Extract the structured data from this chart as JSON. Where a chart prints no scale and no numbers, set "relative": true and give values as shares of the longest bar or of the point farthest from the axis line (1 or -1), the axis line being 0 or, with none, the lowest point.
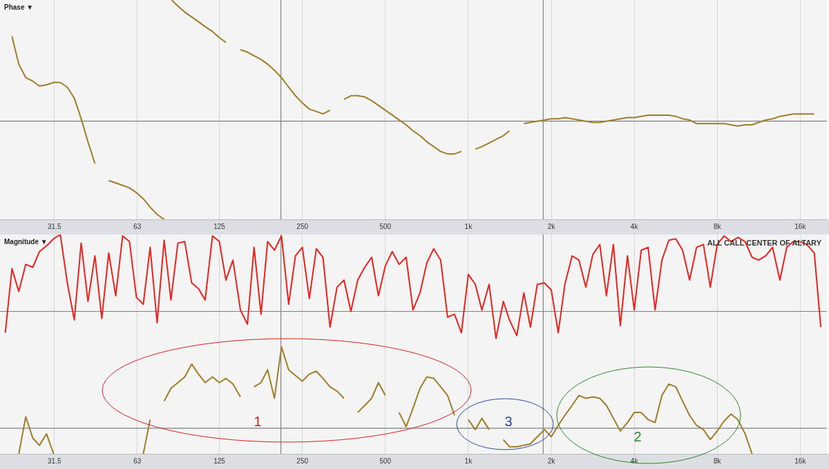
{
  "chart_data": [
    {
      "type": "line",
      "title": "Phase ▼",
      "relative": true,
      "log": "x",
      "xlim": [
        20,
        20000
      ],
      "xticks": [
        31.5,
        63,
        125,
        250,
        500,
        {
          "value": 1000,
          "label": "1k"
        },
        {
          "value": 2000,
          "label": "2k"
        },
        {
          "value": 4000,
          "label": "4k"
        },
        {
          "value": 8000,
          "label": "8k"
        },
        {
          "value": 16000,
          "label": "16k"
        }
      ],
      "grid": "x",
      "tick_labels": "x",
      "ref_lines": [
        {
          "axis": "y",
          "value": 0,
          "color": "#808080"
        },
        {
          "axis": "x",
          "value": 209,
          "color": "#808080"
        },
        {
          "axis": "x",
          "value": 1870,
          "color": "#808080"
        }
      ],
      "series": [
        {
          "color": "#a07c28",
          "x": [
            22.1,
            23.4,
            24.8,
            26.3,
            27.8,
            29.5,
            31.3,
            33.1,
            35.1,
            37.2,
            39.4,
            41.7,
            44.2,
            46.8,
            49.6,
            52.6,
            55.7,
            59,
            62.5,
            66.2,
            70.1,
            74.3,
            78.8,
            81,
            83.9,
            88.4,
            93.6,
            99.2,
            105,
            111,
            118,
            125,
            132,
            140,
            149,
            158,
            167,
            177,
            187,
            198,
            210,
            223,
            236,
            250,
            265,
            281,
            297,
            315,
            334,
            354,
            375,
            397,
            421,
            446,
            472,
            500,
            530,
            561,
            595,
            630,
            668,
            707,
            749,
            794,
            841,
            891,
            944,
            1000,
            1060,
            1120,
            1190,
            1260,
            1340,
            1410,
            1500,
            1590,
            1680,
            1780,
            1890,
            2000,
            2120,
            2240,
            2380,
            2520,
            2670,
            2830,
            3000,
            3170,
            3360,
            3560,
            3780,
            4000,
            4240,
            4490,
            4760,
            5040,
            5340,
            5660,
            5990,
            6350,
            6730,
            7130,
            7550,
            8000,
            8470,
            8980,
            9510,
            10100,
            10700,
            11300,
            12000,
            12700,
            13500,
            14300,
            15100,
            16000,
            16900,
            18000
          ],
          "values": [
            0.7,
            0.47,
            0.36,
            0.33,
            0.29,
            0.3,
            0.32,
            0.32,
            0.28,
            0.19,
            0.02,
            -0.17,
            -0.35,
            null,
            -0.49,
            -0.51,
            -0.53,
            -0.55,
            -0.59,
            -0.64,
            -0.71,
            -0.77,
            -0.81,
            null,
            1.0,
            0.95,
            0.9,
            0.86,
            0.82,
            0.78,
            0.74,
            0.69,
            0.65,
            null,
            0.59,
            0.57,
            0.54,
            0.51,
            0.47,
            0.42,
            0.36,
            0.28,
            0.21,
            0.15,
            0.1,
            0.08,
            0.06,
            0.09,
            null,
            0.18,
            0.21,
            0.21,
            0.2,
            0.17,
            0.13,
            0.09,
            0.05,
            0.01,
            -0.03,
            -0.08,
            -0.12,
            -0.17,
            -0.21,
            -0.25,
            -0.27,
            -0.27,
            -0.25,
            null,
            -0.23,
            -0.21,
            -0.18,
            -0.15,
            -0.12,
            -0.08,
            null,
            -0.02,
            -0.01,
            0,
            0.01,
            0.02,
            0.02,
            0.03,
            0.02,
            0.01,
            0,
            -0.01,
            -0.01,
            0,
            0.01,
            0.02,
            0.03,
            0.03,
            0.04,
            0.05,
            0.05,
            0.05,
            0.05,
            0.04,
            0.02,
            0.01,
            -0.02,
            -0.02,
            -0.02,
            -0.02,
            -0.02,
            -0.03,
            -0.04,
            -0.03,
            -0.03,
            -0.01,
            0.01,
            0.02,
            0.04,
            0.05,
            0.06,
            0.06,
            0.06,
            0.06
          ]
        }
      ]
    },
    {
      "type": "line",
      "title": "Magnitude ▼",
      "relative": true,
      "log": "x",
      "xlim": [
        20,
        20000
      ],
      "xticks": [
        31.5,
        63,
        125,
        250,
        500,
        {
          "value": 1000,
          "label": "1k"
        },
        {
          "value": 2000,
          "label": "2k"
        },
        {
          "value": 4000,
          "label": "4k"
        },
        {
          "value": 8000,
          "label": "8k"
        },
        {
          "value": 16000,
          "label": "16k"
        }
      ],
      "grid": "x",
      "tick_labels": "x",
      "ref_lines": [
        {
          "axis": "y",
          "value": 0,
          "color": "#808080"
        },
        {
          "axis": "y",
          "value": -0.82,
          "color": "#808080"
        },
        {
          "axis": "x",
          "value": 209,
          "color": "#808080"
        },
        {
          "axis": "x",
          "value": 1870,
          "color": "#808080"
        }
      ],
      "annotations": [
        "ALL CALL CENTER OF ALTARY",
        "1",
        "2",
        "3"
      ],
      "x": [
        20.9,
        22.1,
        23.4,
        24.8,
        26.3,
        27.8,
        29.5,
        31.3,
        33.1,
        35.1,
        37.2,
        39.4,
        41.7,
        44.2,
        46.8,
        49.6,
        52.6,
        55.7,
        59,
        62.5,
        66.2,
        70.1,
        74.3,
        78.8,
        83.4,
        88.4,
        93.6,
        99.2,
        105,
        111,
        118,
        125,
        132,
        140,
        149,
        158,
        167,
        177,
        187,
        198,
        210,
        223,
        236,
        250,
        265,
        281,
        297,
        315,
        334,
        354,
        375,
        397,
        421,
        446,
        472,
        500,
        530,
        561,
        595,
        630,
        668,
        707,
        749,
        794,
        841,
        891,
        944,
        1000,
        1060,
        1120,
        1190,
        1260,
        1340,
        1410,
        1500,
        1590,
        1680,
        1780,
        1890,
        2000,
        2120,
        2240,
        2380,
        2520,
        2670,
        2830,
        3000,
        3170,
        3360,
        3560,
        3780,
        4000,
        4240,
        4490,
        4760,
        5040,
        5340,
        5660,
        5990,
        6350,
        6730,
        7130,
        7550,
        8000,
        8470,
        8980,
        9510,
        10100,
        10700,
        11300,
        12000,
        12700,
        13500,
        14300,
        15100,
        16000,
        16900,
        18000,
        19000
      ],
      "series": [
        {
          "color": "#e8221c",
          "values": [
            -0.15,
            0.3,
            0.14,
            0.33,
            0.31,
            0.42,
            0.46,
            0.51,
            0.54,
            0.2,
            -0.06,
            0.48,
            0.07,
            0.39,
            -0.05,
            0.41,
            0.11,
            0.53,
            0.49,
            0.1,
            0.05,
            0.45,
            -0.08,
            0.5,
            0.08,
            0.48,
            0.49,
            0.2,
            0.16,
            0.08,
            0.53,
            0.49,
            0.22,
            0.36,
            0.01,
            -0.09,
            0.45,
            -0.02,
            0.49,
            0.43,
            0.53,
            0.05,
            0.39,
            0.45,
            0.09,
            0.44,
            0.38,
            -0.11,
            0.17,
            0.22,
            0,
            0.22,
            0.31,
            0.38,
            0.11,
            0.32,
            0.42,
            0.33,
            0.38,
            0.01,
            0.13,
            0.34,
            0.44,
            0.36,
            -0.04,
            -0.02,
            -0.15,
            0.26,
            0.19,
            0.01,
            0.19,
            -0.19,
            0.07,
            -0.06,
            -0.17,
            0.13,
            -0.11,
            0.19,
            0.2,
            0.15,
            -0.15,
            0.19,
            0.39,
            0.36,
            0.17,
            0.4,
            0.47,
            0.11,
            0.47,
            -0.1,
            0.39,
            0.01,
            0.43,
            0.45,
            0.01,
            0.36,
            0.5,
            0.51,
            0.43,
            0.22,
            0.45,
            0.47,
            0.17,
            0.47,
            0.53,
            0.49,
            0.52,
            0.49,
            0.38,
            0.36,
            0.39,
            0.45,
            0.22,
            0.45,
            0.49,
            0.49,
            0.47,
            0.41,
            -0.11
          ]
        },
        {
          "color": "#a07c28",
          "values": [
            null,
            null,
            -1.0,
            -0.74,
            -0.89,
            -0.94,
            -0.86,
            -1.0,
            null,
            null,
            null,
            null,
            null,
            null,
            null,
            null,
            null,
            null,
            null,
            null,
            -1.0,
            -0.76,
            null,
            -0.63,
            -0.54,
            -0.5,
            -0.46,
            -0.37,
            -0.44,
            -0.5,
            -0.46,
            -0.5,
            -0.47,
            -0.51,
            -0.6,
            null,
            -0.53,
            -0.5,
            -0.41,
            -0.61,
            -0.25,
            -0.41,
            -0.45,
            -0.49,
            -0.44,
            -0.42,
            -0.47,
            -0.53,
            -0.56,
            -0.61,
            null,
            -0.71,
            -0.66,
            -0.61,
            -0.5,
            -0.59,
            null,
            -0.71,
            -0.81,
            -0.68,
            -0.54,
            -0.46,
            -0.47,
            -0.53,
            -0.59,
            -0.73,
            null,
            -0.76,
            -0.83,
            -0.75,
            -0.83,
            null,
            -0.9,
            -0.95,
            -0.95,
            -0.94,
            -0.93,
            -0.88,
            -0.83,
            -0.88,
            -0.8,
            -0.73,
            -0.66,
            -0.59,
            -0.61,
            -0.6,
            -0.61,
            -0.66,
            -0.75,
            -0.84,
            -0.78,
            -0.71,
            -0.71,
            -0.76,
            -0.78,
            -0.59,
            -0.51,
            -0.53,
            -0.63,
            -0.73,
            -0.8,
            -0.83,
            -0.9,
            -0.84,
            -0.77,
            -0.72,
            -0.76,
            -0.86,
            -1.0,
            null,
            null,
            null,
            null,
            null,
            null,
            null,
            null,
            null,
            null
          ]
        }
      ]
    }
  ]
}
